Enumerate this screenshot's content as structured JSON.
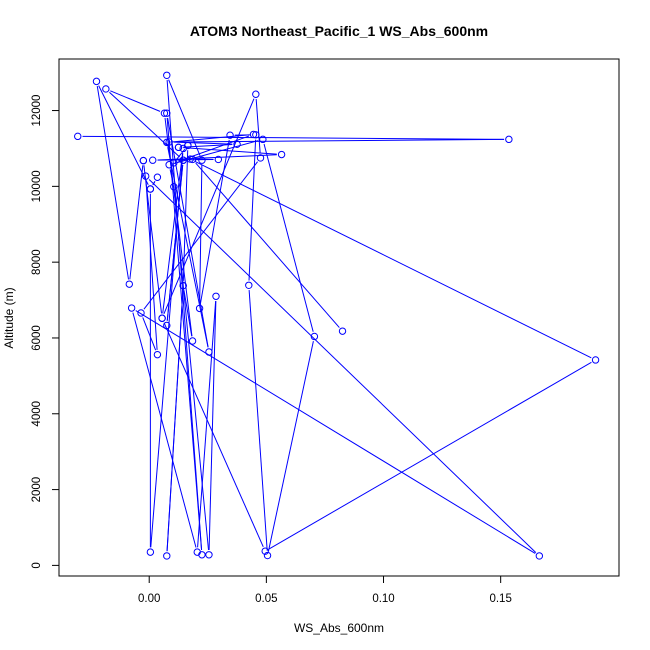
{
  "chart_data": {
    "type": "line",
    "title": "ATOM3 Northeast_Pacific_1 WS_Abs_600nm",
    "xlabel": "WS_Abs_600nm",
    "ylabel": "Altitude (m)",
    "xlim": [
      -0.0385,
      0.2005
    ],
    "ylim": [
      -280,
      13360
    ],
    "xticks": [
      0.0,
      0.05,
      0.1,
      0.15
    ],
    "xtick_labels": [
      "0.00",
      "0.05",
      "0.10",
      "0.15"
    ],
    "yticks": [
      0,
      2000,
      4000,
      6000,
      8000,
      10000,
      12000
    ],
    "ytick_labels": [
      "0",
      "2000",
      "4000",
      "6000",
      "8000",
      "10000",
      "12000"
    ],
    "grid": false,
    "marker": "open-circle",
    "series": [
      {
        "color": "#0000ff",
        "points": [
          [
            -0.0305,
            11320
          ],
          [
            0.1535,
            11240
          ],
          [
            0.0085,
            11170
          ],
          [
            0.0375,
            11110
          ],
          [
            0.0125,
            11030
          ],
          [
            0.0125,
            11030
          ],
          [
            0.0565,
            10840
          ],
          [
            0.0015,
            10690
          ],
          [
            0.0295,
            10710
          ],
          [
            0.0175,
            10720
          ],
          [
            0.1905,
            5420
          ],
          [
            0.0495,
            375
          ],
          [
            0.0055,
            6520
          ],
          [
            0.0145,
            11000
          ],
          [
            0.0005,
            350
          ],
          [
            0.0005,
            9930
          ],
          [
            0.0035,
            10240
          ],
          [
            0.0005,
            9930
          ],
          [
            -0.0225,
            12770
          ],
          [
            -0.0085,
            7420
          ],
          [
            -0.0025,
            10680
          ],
          [
            -0.0025,
            10680
          ],
          [
            0.0055,
            6520
          ],
          [
            0.0455,
            12430
          ],
          [
            0.0475,
            10750
          ],
          [
            -0.0035,
            6660
          ],
          [
            0.0035,
            5560
          ],
          [
            -0.0015,
            10270
          ],
          [
            0.1665,
            250
          ],
          [
            -0.0075,
            6790
          ],
          [
            0.0205,
            350
          ],
          [
            0.0285,
            7100
          ],
          [
            0.0255,
            280
          ],
          [
            0.0105,
            9990
          ],
          [
            0.0085,
            10570
          ],
          [
            0.0485,
            11240
          ],
          [
            0.0705,
            6040
          ],
          [
            0.0505,
            260
          ],
          [
            0.0425,
            7390
          ],
          [
            0.0455,
            11360
          ],
          [
            0.0345,
            11350
          ],
          [
            0.0215,
            6780
          ],
          [
            0.0225,
            10690
          ],
          [
            0.0075,
            12930
          ],
          [
            0.0225,
            280
          ],
          [
            0.0075,
            11930
          ],
          [
            0.0255,
            5630
          ],
          [
            0.0075,
            11160
          ],
          [
            0.0445,
            11370
          ],
          [
            0.0105,
            10620
          ],
          [
            0.0165,
            11080
          ],
          [
            0.0165,
            11080
          ],
          [
            0.0145,
            7380
          ],
          [
            0.0075,
            250
          ],
          [
            0.0145,
            7380
          ],
          [
            0.0185,
            5920
          ],
          [
            0.0065,
            11930
          ],
          [
            -0.0185,
            12570
          ],
          [
            0.0145,
            10690
          ],
          [
            0.0075,
            6330
          ],
          [
            0.0145,
            10690
          ],
          [
            0.0185,
            10710
          ],
          [
            0.0825,
            6180
          ]
        ]
      }
    ]
  }
}
